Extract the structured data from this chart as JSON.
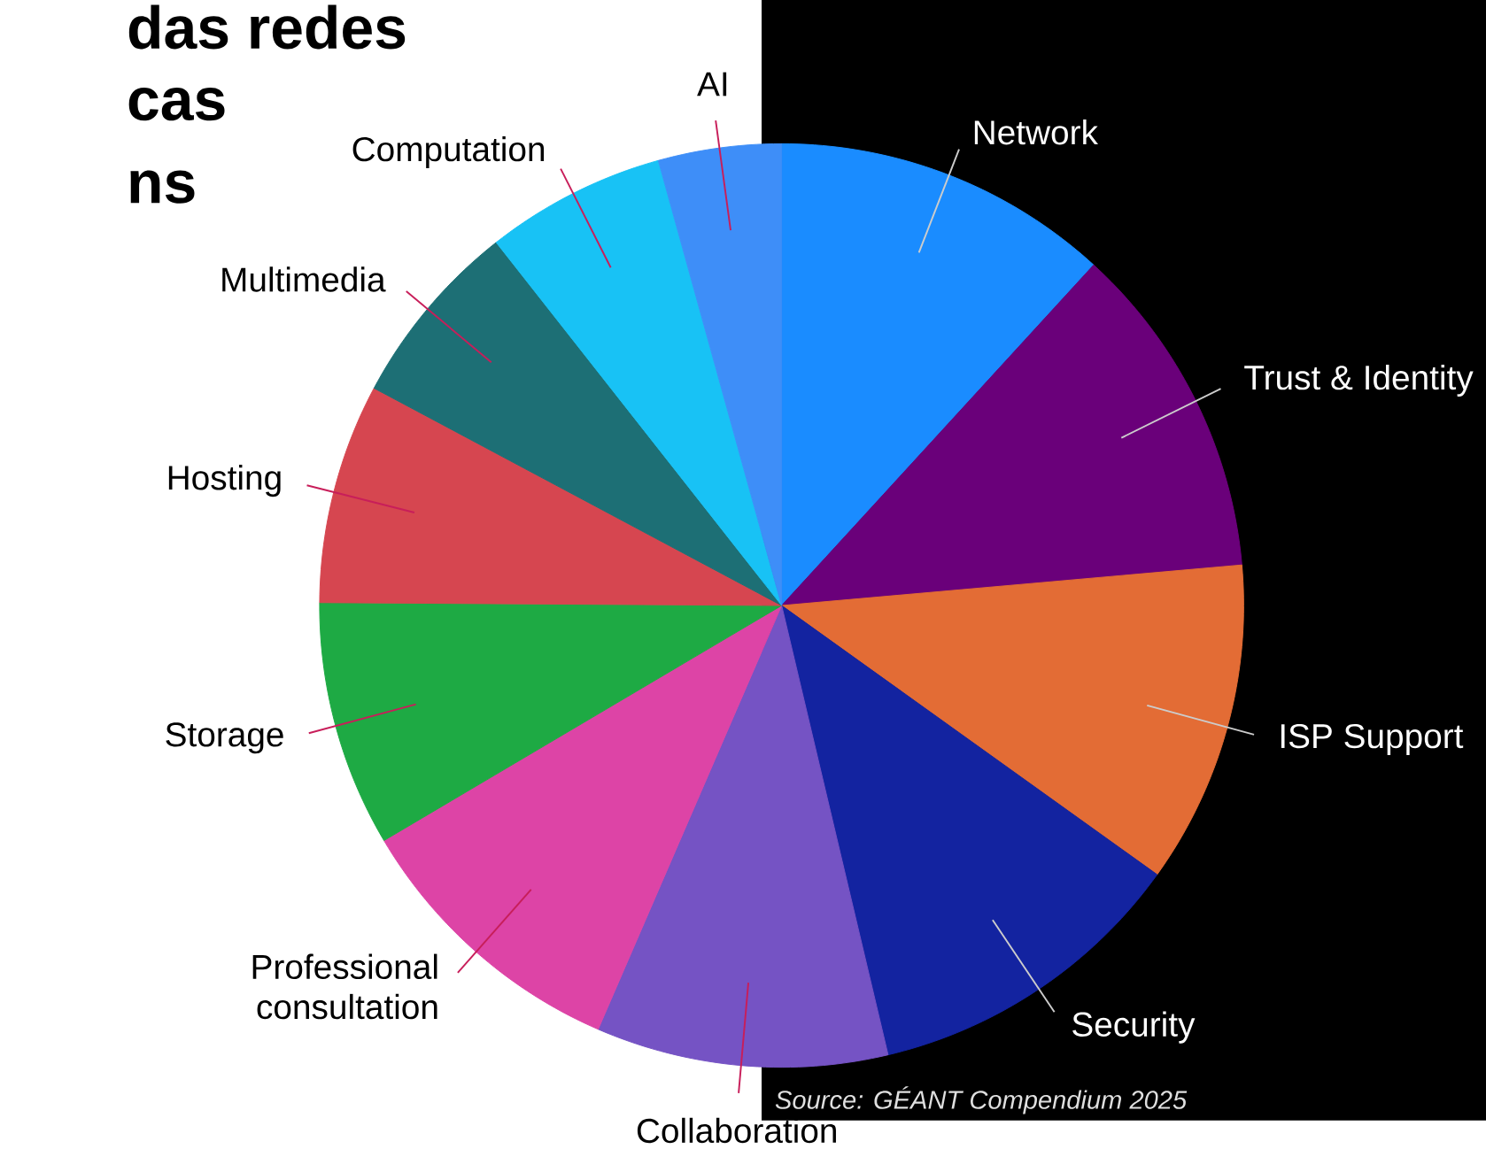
{
  "chart_data": {
    "type": "pie",
    "categories": [
      "Network",
      "Trust & Identity",
      "ISP Support",
      "Security",
      "Collaboration",
      "Professional consultation",
      "Storage",
      "Hosting",
      "Multimedia",
      "Computation",
      "AI"
    ],
    "values": [
      11.8,
      11.8,
      11.3,
      11.4,
      10.2,
      10.0,
      8.6,
      7.7,
      6.6,
      6.3,
      4.3
    ],
    "colors": [
      "#1a8cff",
      "#6a007a",
      "#e36c35",
      "#1323a0",
      "#7553c4",
      "#dd44a6",
      "#1eaa44",
      "#d64650",
      "#1d6f75",
      "#18c2f5",
      "#3e8ef8"
    ],
    "annotations": [
      "das redes",
      "cas",
      "ns",
      "Source: GÉANT Compendium 2025"
    ]
  }
}
